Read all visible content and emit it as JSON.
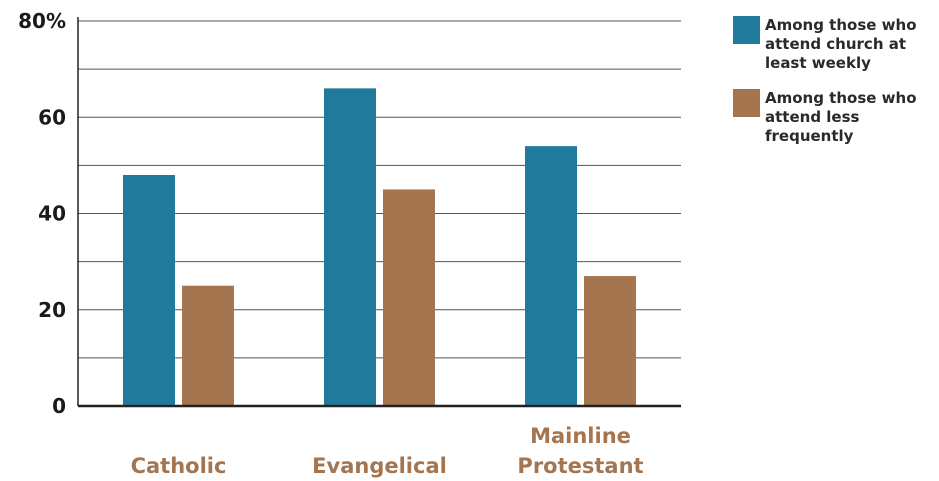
{
  "chart_data": {
    "type": "bar",
    "categories": [
      "Catholic",
      "Evangelical",
      "Mainline Protestant"
    ],
    "category_lines": [
      [
        "Catholic"
      ],
      [
        "Evangelical"
      ],
      [
        "Mainline",
        "Protestant"
      ]
    ],
    "series": [
      {
        "name": "Among those who attend church at least weekly",
        "values": [
          48,
          66,
          54
        ],
        "color": "#1f7a9c"
      },
      {
        "name": "Among those who attend less frequently",
        "values": [
          25,
          45,
          27
        ],
        "color": "#a4754f"
      }
    ],
    "ylim": [
      0,
      80
    ],
    "yticks": [
      0,
      20,
      40,
      60,
      80
    ],
    "ytick_labels": [
      "0",
      "20",
      "40",
      "60",
      "80%"
    ],
    "grid": true,
    "legend_position": "top-right",
    "category_label_color": "#a4754f"
  }
}
